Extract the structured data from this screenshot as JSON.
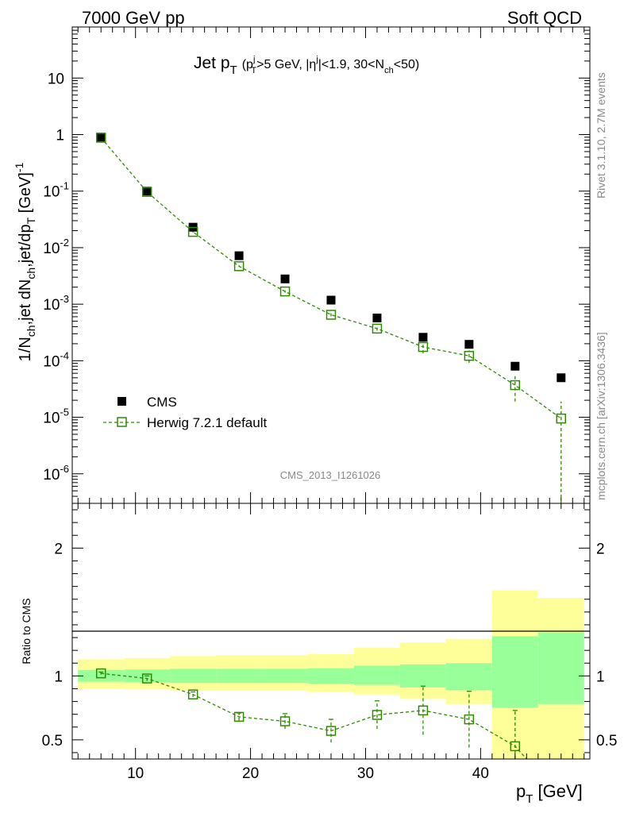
{
  "header": {
    "left": "7000 GeV pp",
    "right": "Soft QCD"
  },
  "side_notes": {
    "rivet": "Rivet 3.1.10,  2.7M events",
    "mcplots": "mcplots.cern.ch [arXiv:1306.3436]"
  },
  "analysis_id": "CMS_2013_I1261026",
  "colors": {
    "mc": "#2e8b00",
    "band_inner": "#99ff99",
    "band_outer": "#ffff99",
    "data": "#000000"
  },
  "chart_data": [
    {
      "type": "scatter",
      "panel": "main",
      "title": {
        "main": "Jet p",
        "sub": "T",
        "cond_open": "(p",
        "cond_sup": "j",
        "cond_sub": "T",
        "cond_1": ">5 GeV, |η",
        "cond_sup2": "j",
        "cond_2": "|<1.9, 30<N",
        "cond_sub2": "ch",
        "cond_3": "<50)"
      },
      "ylabel": "1/N_ch,jet dN_ch,jet/dp_T [GeV]^-1",
      "yscale": "log",
      "ylim": [
        3e-07,
        80
      ],
      "xlim": [
        4.5,
        49.5
      ],
      "y_tick_labels": [
        "10",
        "1",
        "10^-1",
        "10^-2",
        "10^-3",
        "10^-4",
        "10^-5",
        "10^-6"
      ],
      "legend": {
        "position": "lower-left",
        "data_label": "CMS",
        "mc_label": "Herwig 7.2.1 default"
      },
      "series": [
        {
          "name": "CMS",
          "x": [
            7,
            11,
            15,
            19,
            23,
            27,
            31,
            35,
            39,
            43,
            47
          ],
          "y": [
            0.9,
            0.1,
            0.023,
            0.0072,
            0.0028,
            0.00118,
            0.00057,
            0.00026,
            0.000195,
            8e-05,
            5e-05
          ]
        },
        {
          "name": "Herwig 7.2.1 default",
          "x": [
            7,
            11,
            15,
            19,
            23,
            27,
            31,
            35,
            39,
            43,
            47
          ],
          "y": [
            0.88,
            0.097,
            0.019,
            0.0047,
            0.00168,
            0.00065,
            0.00037,
            0.000175,
            0.000122,
            3.7e-05,
            9.5e-06
          ],
          "yerr": [
            0.01,
            0.002,
            0.0005,
            0.00015,
            8e-05,
            4e-05,
            3e-05,
            4e-05,
            3e-05,
            1.8e-05,
            9.5e-06
          ]
        }
      ]
    },
    {
      "type": "scatter",
      "panel": "ratio",
      "ylabel": "Ratio to CMS",
      "xlabel": "p_T [GeV]",
      "ylim": [
        0.35,
        2.35
      ],
      "xlim": [
        4.5,
        49.5
      ],
      "x_tick_labels": [
        "10",
        "20",
        "30",
        "40"
      ],
      "y_tick_labels": [
        "0.5",
        "1",
        "2"
      ],
      "bins": [
        {
          "lo": 5,
          "hi": 9,
          "inner": [
            0.955,
            1.045
          ],
          "outer": [
            0.9,
            1.13
          ]
        },
        {
          "lo": 9,
          "hi": 13,
          "inner": [
            0.95,
            1.05
          ],
          "outer": [
            0.895,
            1.14
          ]
        },
        {
          "lo": 13,
          "hi": 17,
          "inner": [
            0.945,
            1.055
          ],
          "outer": [
            0.885,
            1.155
          ]
        },
        {
          "lo": 17,
          "hi": 21,
          "inner": [
            0.945,
            1.055
          ],
          "outer": [
            0.885,
            1.16
          ]
        },
        {
          "lo": 21,
          "hi": 25,
          "inner": [
            0.945,
            1.055
          ],
          "outer": [
            0.885,
            1.16
          ]
        },
        {
          "lo": 25,
          "hi": 29,
          "inner": [
            0.94,
            1.06
          ],
          "outer": [
            0.875,
            1.17
          ]
        },
        {
          "lo": 29,
          "hi": 33,
          "inner": [
            0.93,
            1.08
          ],
          "outer": [
            0.855,
            1.22
          ]
        },
        {
          "lo": 33,
          "hi": 37,
          "inner": [
            0.91,
            1.09
          ],
          "outer": [
            0.82,
            1.26
          ]
        },
        {
          "lo": 37,
          "hi": 41,
          "inner": [
            0.89,
            1.1
          ],
          "outer": [
            0.78,
            1.29
          ]
        },
        {
          "lo": 41,
          "hi": 45,
          "inner": [
            0.75,
            1.31
          ],
          "outer": [
            0.35,
            1.67
          ]
        },
        {
          "lo": 45,
          "hi": 49,
          "inner": [
            0.78,
            1.34
          ],
          "outer": [
            0.35,
            1.61
          ]
        }
      ],
      "series": [
        {
          "name": "Herwig 7.2.1 default / CMS",
          "x": [
            7,
            11,
            15,
            19,
            23,
            27,
            31,
            35,
            39,
            43,
            47
          ],
          "y": [
            1.02,
            0.98,
            0.855,
            0.68,
            0.645,
            0.57,
            0.695,
            0.73,
            0.66,
            0.45,
            null
          ],
          "yerr": [
            0.01,
            0.02,
            0.02,
            0.03,
            0.06,
            0.09,
            0.11,
            0.19,
            0.22,
            0.28,
            null
          ]
        }
      ]
    }
  ]
}
